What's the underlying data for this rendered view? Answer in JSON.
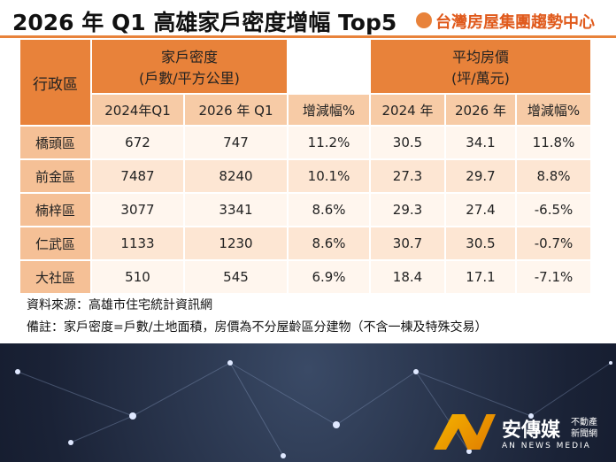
{
  "header": {
    "title": "2026 年 Q1 高雄家戶密度增幅 Top5",
    "logo": "台灣房屋集團趨勢中心"
  },
  "table": {
    "corner": "行政區",
    "groups": [
      {
        "label": "家戶密度",
        "unit": "(戶數/平方公里)"
      },
      {
        "label": "平均房價",
        "unit": "(坪/萬元)"
      }
    ],
    "columns": [
      "2024年Q1",
      "2026 年 Q1",
      "增減幅%",
      "2024 年",
      "2026 年",
      "增減幅%"
    ],
    "rows": [
      [
        "橋頭區",
        "672",
        "747",
        "11.2%",
        "30.5",
        "34.1",
        "11.8%"
      ],
      [
        "前金區",
        "7487",
        "8240",
        "10.1%",
        "27.3",
        "29.7",
        "8.8%"
      ],
      [
        "楠梓區",
        "3077",
        "3341",
        "8.6%",
        "29.3",
        "27.4",
        "-6.5%"
      ],
      [
        "仁武區",
        "1133",
        "1230",
        "8.6%",
        "30.7",
        "30.5",
        "-0.7%"
      ],
      [
        "大社區",
        "510",
        "545",
        "6.9%",
        "18.4",
        "17.1",
        "-7.1%"
      ]
    ]
  },
  "notes": [
    "資料來源：高雄市住宅統計資訊網",
    "備註：家戶密度=戶數/土地面積，房價為不分屋齡區分建物（不含一棟及特殊交易）"
  ],
  "footer": {
    "brand": "安傳媒",
    "sub1": "不動產",
    "sub2": "新聞網",
    "en": "AN NEWS MEDIA"
  }
}
